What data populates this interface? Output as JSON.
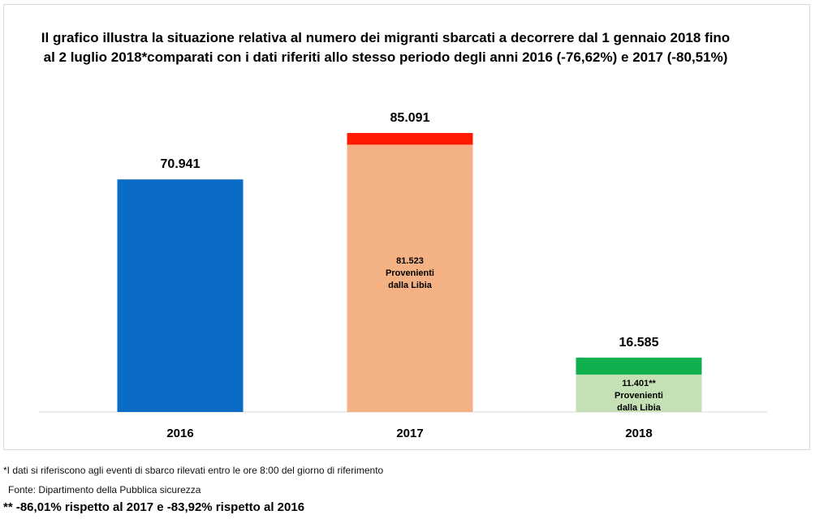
{
  "chart_data": {
    "type": "bar",
    "title": "Il grafico illustra la situazione relativa  al numero dei migranti sbarcati a decorrere dal 1 gennaio 2018 fino al 2 luglio 2018*comparati con i dati riferiti allo stesso periodo degli anni 2016 (-76,62%) e 2017 (-80,51%)",
    "categories": [
      "2016",
      "2017",
      "2018"
    ],
    "values": [
      70941,
      85091,
      16585
    ],
    "value_labels": [
      "70.941",
      "85.091",
      "16.585"
    ],
    "libia_values": [
      null,
      81523,
      11401
    ],
    "libia_labels": [
      "",
      "81.523",
      "11.401**"
    ],
    "libia_text_line1": "Provenienti",
    "libia_text_line2": "dalla Libia",
    "colors": {
      "2016_total": "#0a6cc4",
      "2017_libia": "#f4b183",
      "2017_rest": "#ff1a00",
      "2018_libia": "#c5e0b4",
      "2018_rest": "#11b04f"
    },
    "ylim": [
      0,
      85091
    ],
    "grid": false,
    "xlabel": "",
    "ylabel": ""
  },
  "footnotes": {
    "note1": "*I dati si riferiscono agli eventi di sbarco rilevati entro le ore 8:00 del giorno di riferimento",
    "source": "Fonte: Dipartimento della Pubblica sicurezza",
    "note2": "** -86,01% rispetto al 2017 e -83,92% rispetto al 2016"
  }
}
